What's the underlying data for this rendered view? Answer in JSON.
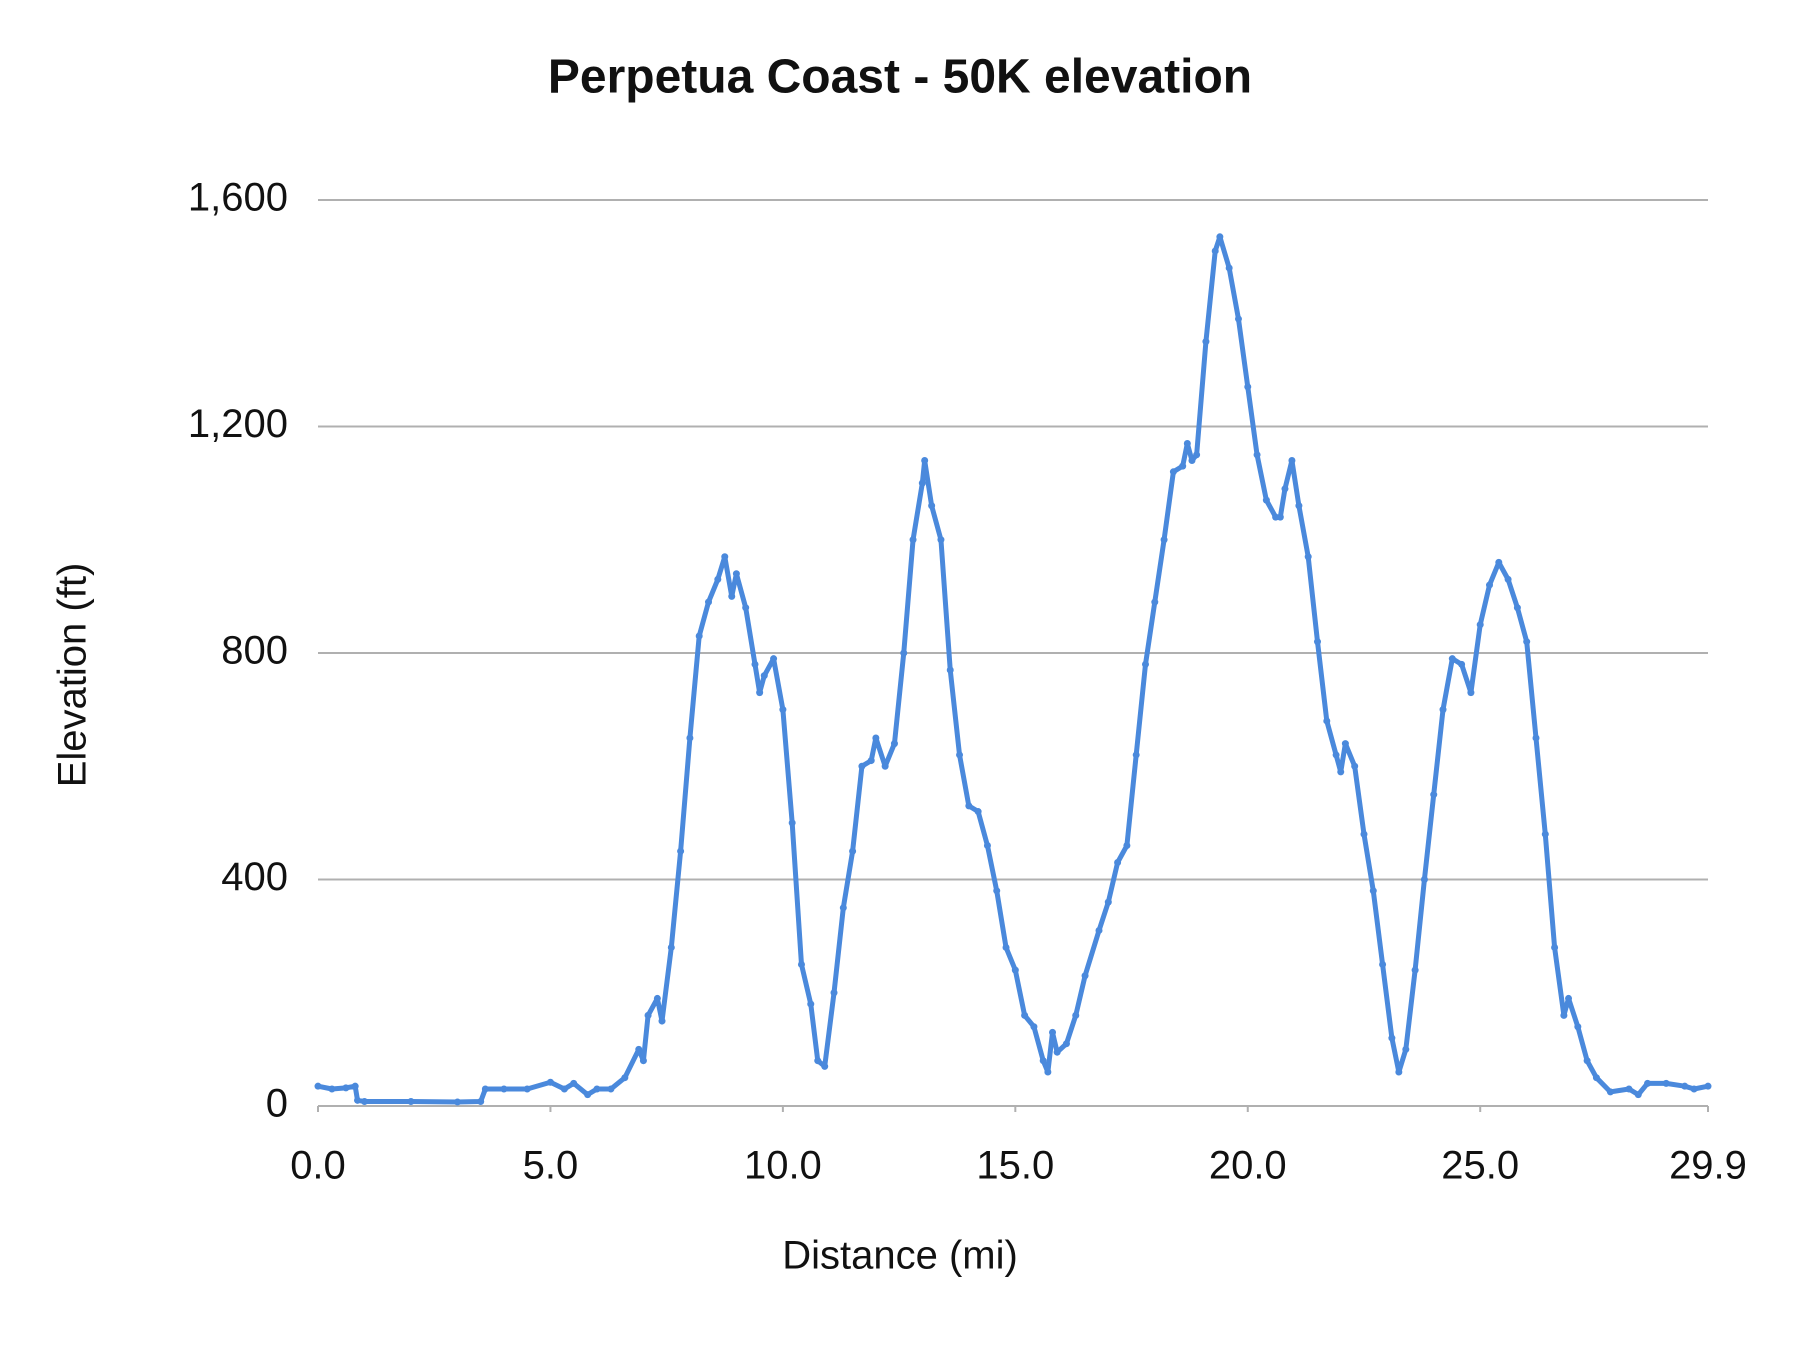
{
  "chart_data": {
    "type": "line",
    "title": "Perpetua Coast - 50K elevation",
    "x_label": "Distance (mi)",
    "y_label": "Elevation (ft)",
    "color": "#4a89dc",
    "grid": true,
    "xlim": [
      0,
      29.9
    ],
    "ylim": [
      0,
      1600
    ],
    "xticks": [
      {
        "value": 0,
        "label": "0.0"
      },
      {
        "value": 5,
        "label": "5.0"
      },
      {
        "value": 10,
        "label": "10.0"
      },
      {
        "value": 15,
        "label": "15.0"
      },
      {
        "value": 20,
        "label": "20.0"
      },
      {
        "value": 25,
        "label": "25.0"
      },
      29.9
    ],
    "yticks": [
      0,
      400,
      800,
      {
        "value": 1200,
        "label": "1,200"
      },
      {
        "value": 1600,
        "label": "1,600"
      }
    ],
    "x": [
      0,
      0.3,
      0.6,
      0.8,
      0.85,
      1.0,
      2.0,
      3.0,
      3.5,
      3.6,
      4.0,
      4.5,
      5.0,
      5.3,
      5.5,
      5.8,
      6.0,
      6.3,
      6.6,
      6.9,
      7.0,
      7.1,
      7.3,
      7.4,
      7.6,
      7.8,
      8.0,
      8.2,
      8.4,
      8.6,
      8.75,
      8.9,
      9.0,
      9.2,
      9.4,
      9.5,
      9.6,
      9.8,
      10.0,
      10.2,
      10.4,
      10.6,
      10.75,
      10.9,
      11.1,
      11.3,
      11.5,
      11.7,
      11.9,
      12.0,
      12.2,
      12.4,
      12.6,
      12.8,
      13.0,
      13.05,
      13.2,
      13.4,
      13.6,
      13.8,
      14.0,
      14.2,
      14.4,
      14.6,
      14.8,
      15.0,
      15.2,
      15.4,
      15.6,
      15.7,
      15.8,
      15.9,
      16.1,
      16.3,
      16.5,
      16.8,
      17.0,
      17.2,
      17.4,
      17.6,
      17.8,
      18.0,
      18.2,
      18.4,
      18.6,
      18.7,
      18.8,
      18.9,
      19.1,
      19.3,
      19.4,
      19.6,
      19.8,
      20.0,
      20.2,
      20.4,
      20.6,
      20.7,
      20.8,
      20.95,
      21.1,
      21.3,
      21.5,
      21.7,
      21.9,
      22.0,
      22.1,
      22.3,
      22.5,
      22.7,
      22.9,
      23.1,
      23.25,
      23.4,
      23.6,
      23.8,
      24.0,
      24.2,
      24.4,
      24.6,
      24.8,
      25.0,
      25.2,
      25.4,
      25.6,
      25.8,
      26.0,
      26.2,
      26.4,
      26.6,
      26.8,
      26.9,
      27.1,
      27.3,
      27.5,
      27.8,
      28.2,
      28.4,
      28.6,
      29.0,
      29.4,
      29.6,
      29.9
    ],
    "values": [
      35,
      30,
      32,
      35,
      10,
      8,
      8,
      7,
      8,
      30,
      30,
      30,
      42,
      30,
      40,
      20,
      30,
      30,
      50,
      100,
      80,
      160,
      190,
      150,
      280,
      450,
      650,
      830,
      890,
      930,
      970,
      900,
      940,
      880,
      780,
      730,
      760,
      790,
      700,
      500,
      250,
      180,
      80,
      70,
      200,
      350,
      450,
      600,
      610,
      650,
      600,
      640,
      800,
      1000,
      1100,
      1140,
      1060,
      1000,
      770,
      620,
      530,
      520,
      460,
      380,
      280,
      240,
      160,
      140,
      80,
      60,
      130,
      95,
      110,
      160,
      230,
      310,
      360,
      430,
      460,
      620,
      780,
      890,
      1000,
      1120,
      1130,
      1170,
      1140,
      1150,
      1350,
      1510,
      1535,
      1480,
      1390,
      1270,
      1150,
      1070,
      1040,
      1040,
      1090,
      1140,
      1060,
      970,
      820,
      680,
      620,
      590,
      640,
      600,
      480,
      380,
      250,
      120,
      60,
      100,
      240,
      400,
      550,
      700,
      790,
      780,
      730,
      850,
      920,
      960,
      930,
      880,
      820,
      650,
      480,
      280,
      160,
      190,
      140,
      80,
      50,
      25,
      30,
      20,
      40,
      40,
      35,
      30,
      35
    ]
  }
}
